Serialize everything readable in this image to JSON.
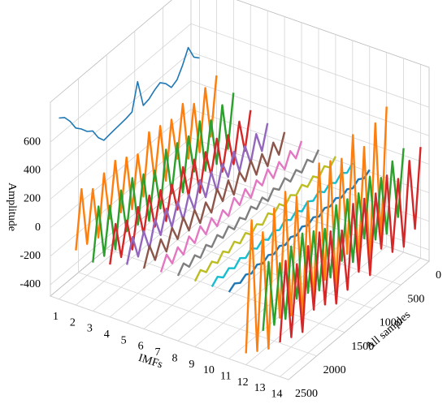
{
  "chart_data": {
    "type": "waterfall3d",
    "xlabel": "All samples",
    "ylabel": "Amplitude",
    "zlabel": "IMFs",
    "categories": [
      1,
      2,
      3,
      4,
      5,
      6,
      7,
      8,
      9,
      10,
      11,
      12,
      13,
      14
    ],
    "x": [
      0,
      100,
      200,
      300,
      400,
      500,
      600,
      700,
      800,
      900,
      1000,
      1100,
      1200,
      1300,
      1400,
      1500,
      1600,
      1700,
      1800,
      1900,
      2000,
      2100,
      2200,
      2300,
      2400,
      2500
    ],
    "xlim": [
      0,
      2500
    ],
    "xticks": [
      0,
      500,
      1000,
      1500,
      2000,
      2500
    ],
    "ylim": [
      -480,
      880
    ],
    "yticks": [
      -400,
      -200,
      0,
      200,
      400,
      600
    ],
    "grid": true,
    "series": [
      {
        "color": "#1f77b4",
        "values": [
          380,
          420,
          520,
          430,
          360,
          340,
          400,
          440,
          420,
          390,
          380,
          580,
          400,
          390,
          385,
          380,
          375,
          368,
          420,
          500,
          530,
          580,
          620,
          700,
          760,
          790
        ]
      },
      {
        "color": "#ff7f0e",
        "values": [
          300,
          -96,
          278,
          -140,
          234,
          -118,
          300,
          -52,
          256,
          -140,
          278,
          -74,
          300,
          -118,
          212,
          -140,
          256,
          -96,
          300,
          -74,
          278,
          -140,
          234,
          -118,
          300,
          -96
        ]
      },
      {
        "color": "#2ca02c",
        "values": [
          220,
          -140,
          200,
          -180,
          160,
          -160,
          220,
          -100,
          180,
          -180,
          200,
          -120,
          220,
          -160,
          140,
          -180,
          180,
          -140,
          220,
          -120,
          200,
          -180,
          160,
          -160,
          220,
          -140
        ]
      },
      {
        "color": "#d62728",
        "values": [
          140,
          -112,
          126,
          -140,
          98,
          -126,
          140,
          -84,
          112,
          -140,
          126,
          -98,
          140,
          -126,
          84,
          -140,
          112,
          -112,
          140,
          -98,
          126,
          -140,
          98,
          -126,
          140,
          -112
        ]
      },
      {
        "color": "#9467bd",
        "values": [
          90,
          -72,
          81,
          -90,
          63,
          -81,
          90,
          -54,
          72,
          -90,
          81,
          -63,
          90,
          -81,
          54,
          -90,
          72,
          -72,
          90,
          -63,
          81,
          -90,
          63,
          -81,
          90,
          -72
        ]
      },
      {
        "color": "#8c564b",
        "values": [
          70,
          -56,
          63,
          -70,
          49,
          -63,
          70,
          -42,
          56,
          -70,
          63,
          -49,
          70,
          -63,
          42,
          -70,
          56,
          -56,
          70,
          -49,
          63,
          -70,
          49,
          -63,
          70,
          -56
        ]
      },
      {
        "color": "#e377c2",
        "values": [
          50,
          -40,
          45,
          -50,
          35,
          -45,
          50,
          -30,
          40,
          -50,
          45,
          -35,
          50,
          -45,
          30,
          -50,
          40,
          -40,
          50,
          -35,
          45,
          -50,
          35,
          -45,
          50,
          -40
        ]
      },
      {
        "color": "#7f7f7f",
        "values": [
          30,
          -24,
          27,
          -30,
          21,
          -27,
          30,
          -18,
          24,
          -30,
          27,
          -21,
          30,
          -27,
          18,
          -30,
          24,
          -24,
          30,
          -21,
          27,
          -30,
          21,
          -27,
          30,
          -24
        ]
      },
      {
        "color": "#bcbd22",
        "values": [
          25,
          -20,
          23,
          -25,
          18,
          -23,
          25,
          -15,
          20,
          -25,
          23,
          -18,
          25,
          -23,
          15,
          -25,
          20,
          -20,
          25,
          -18,
          23,
          -25,
          18,
          -23,
          25,
          -20
        ]
      },
      {
        "color": "#17becf",
        "values": [
          20,
          -16,
          18,
          -20,
          14,
          -18,
          20,
          -12,
          16,
          -20,
          18,
          -14,
          20,
          -18,
          12,
          -20,
          16,
          -16,
          20,
          -14,
          18,
          -20,
          14,
          -18,
          20,
          -16
        ]
      },
      {
        "color": "#1f77b4",
        "values": [
          15,
          -12,
          14,
          -15,
          11,
          -14,
          15,
          -9,
          12,
          -15,
          14,
          -11,
          15,
          -14,
          9,
          -15,
          12,
          -12,
          15,
          -11,
          14,
          -15,
          11,
          -14,
          15,
          -12
        ]
      },
      {
        "color": "#ff7f0e",
        "values": [
          500,
          -400,
          450,
          -500,
          350,
          -450,
          500,
          -300,
          400,
          -500,
          450,
          -350,
          500,
          -450,
          300,
          -500,
          400,
          -400,
          500,
          -350,
          450,
          -500,
          350,
          -450,
          500,
          -400
        ]
      },
      {
        "color": "#2ca02c",
        "values": [
          250,
          -200,
          225,
          -250,
          175,
          -225,
          250,
          -150,
          200,
          -250,
          225,
          -175,
          250,
          -225,
          150,
          -250,
          200,
          -200,
          250,
          -175,
          225,
          -250,
          175,
          -225,
          250,
          -200
        ]
      },
      {
        "color": "#d62728",
        "values": [
          300,
          -240,
          270,
          -300,
          210,
          -270,
          300,
          -180,
          240,
          -300,
          270,
          -210,
          300,
          -270,
          180,
          -300,
          240,
          -240,
          300,
          -210,
          270,
          -300,
          210,
          -270,
          300,
          -240
        ]
      }
    ]
  }
}
